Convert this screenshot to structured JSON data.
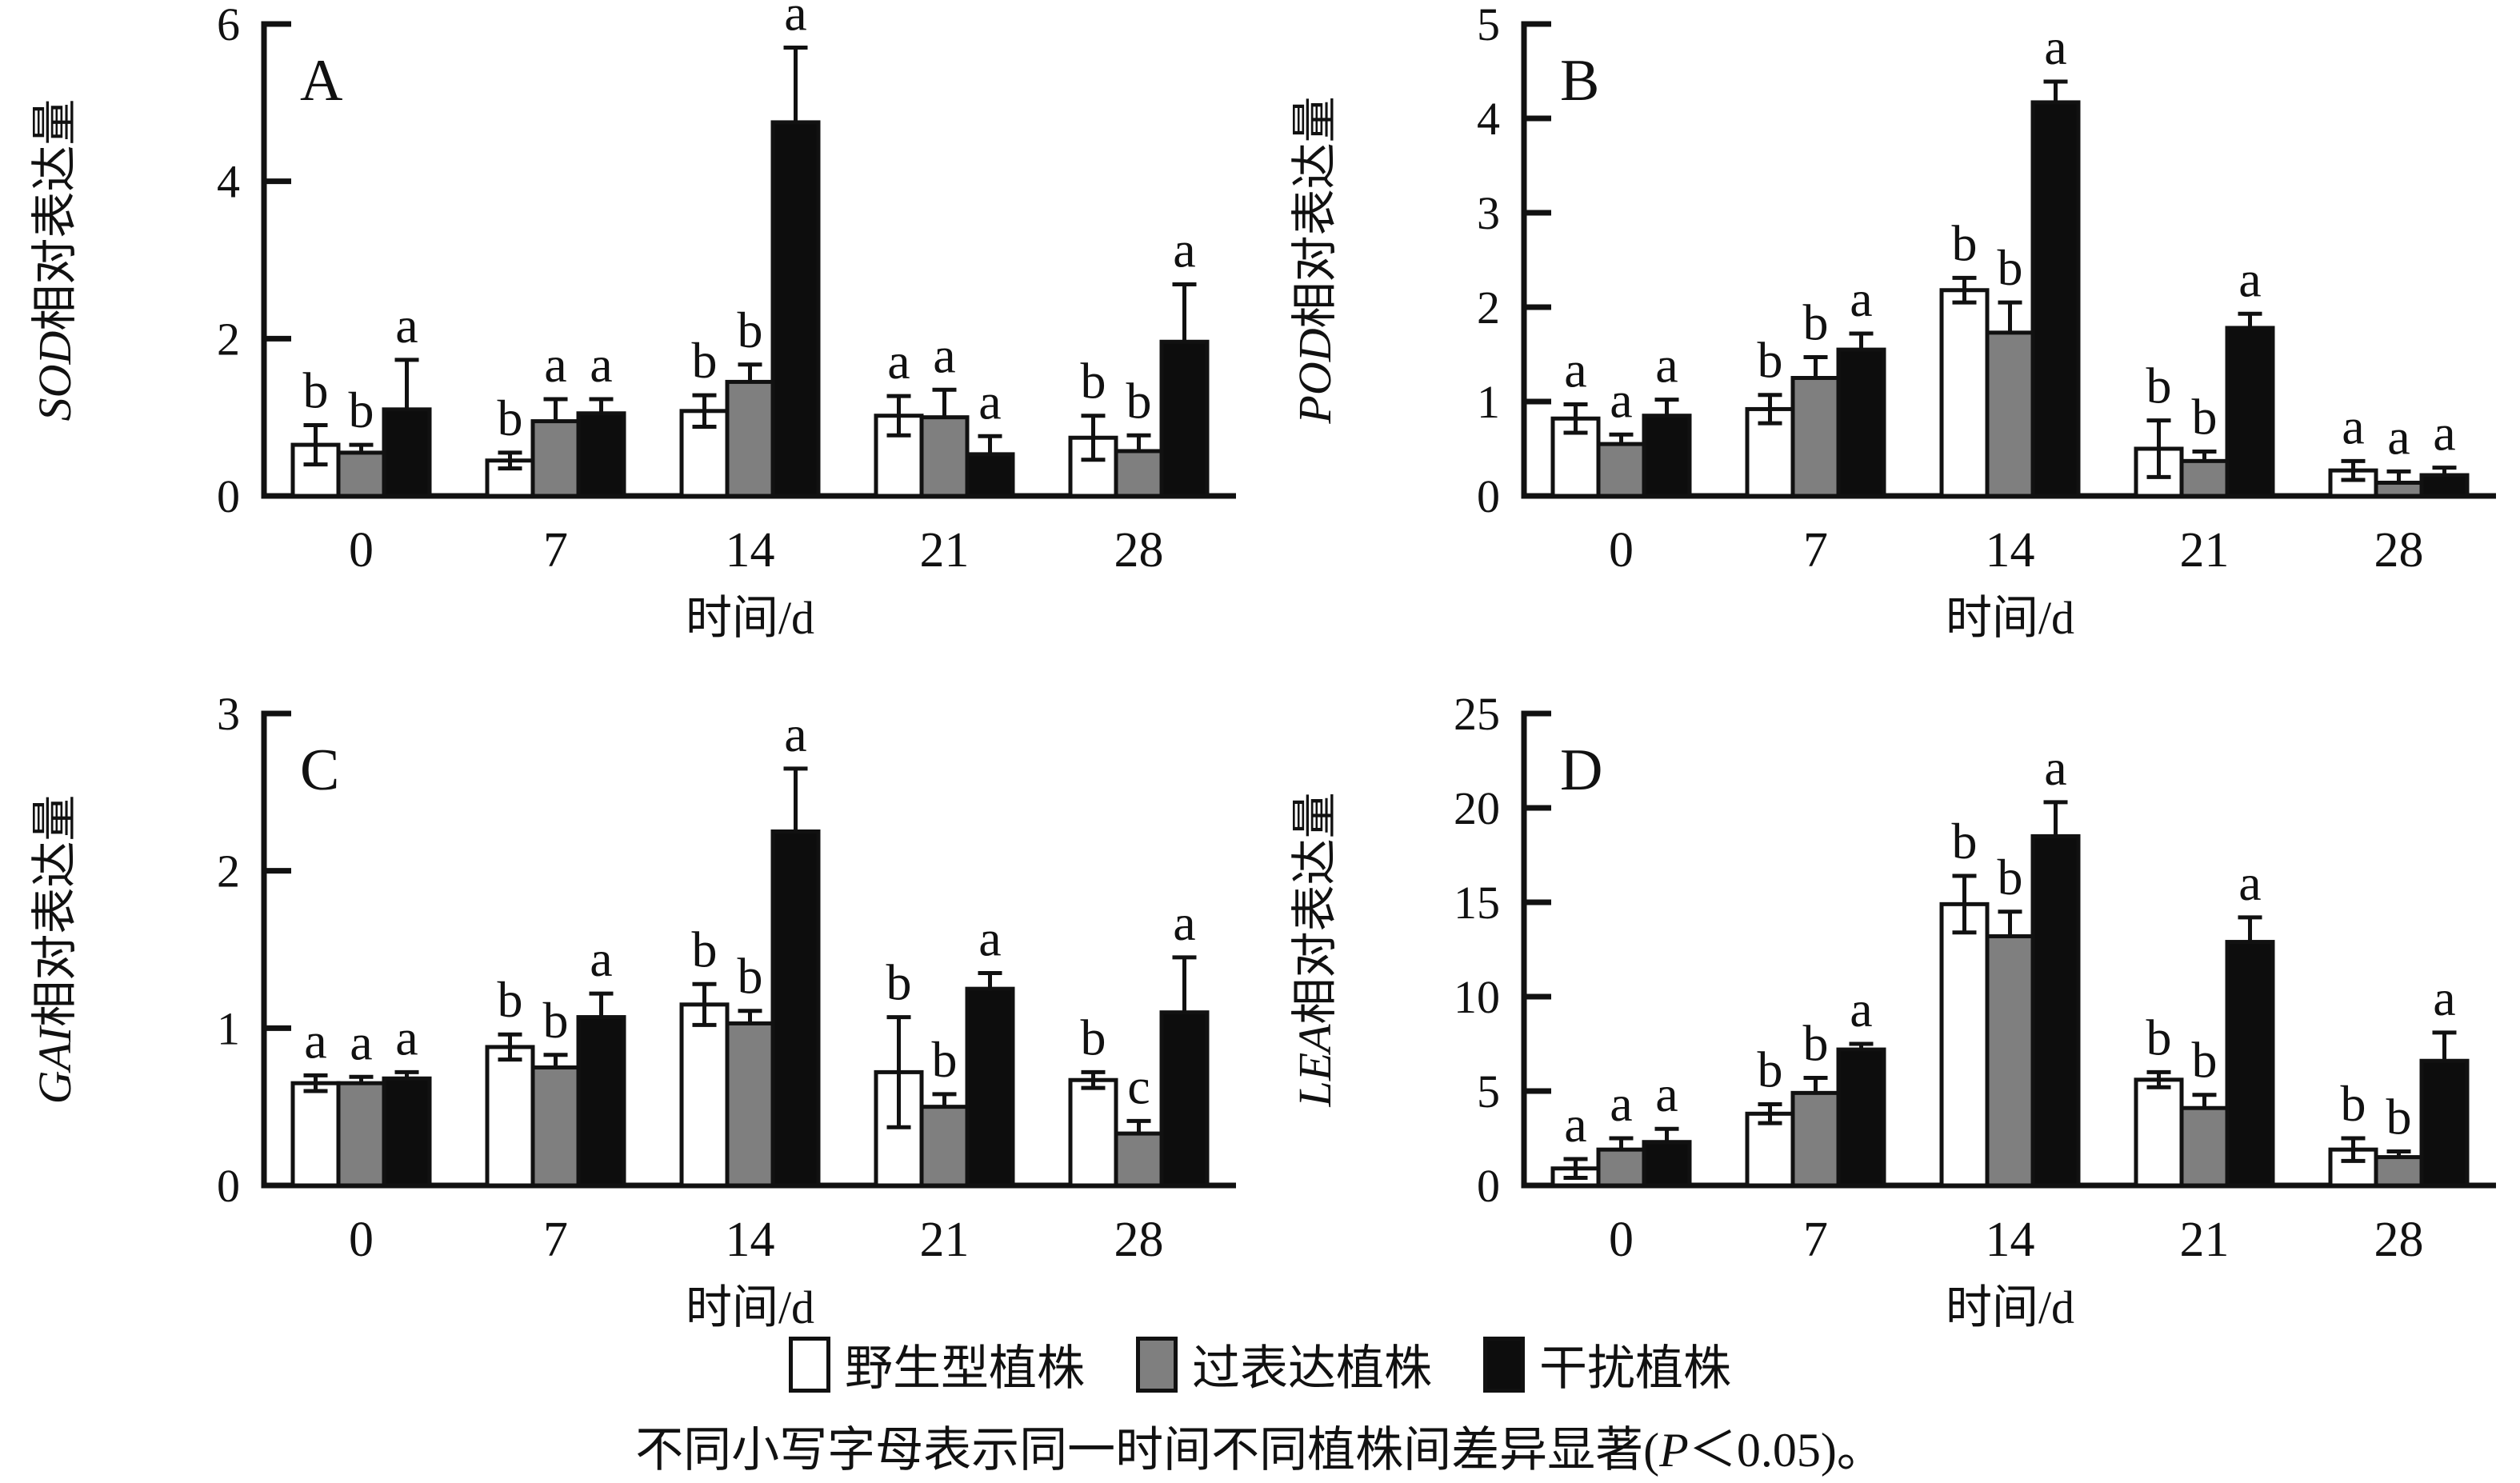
{
  "figure": {
    "xlabel": "时间/d",
    "categories": [
      "0",
      "7",
      "14",
      "21",
      "28"
    ],
    "legend_position": "bottom",
    "caption": {
      "prefix": "不同小写字母表示同一时间不同植株间差异显著(",
      "italic": "P",
      "suffix": "＜0.05)。"
    }
  },
  "legend": {
    "items": [
      {
        "label": "野生型植株",
        "color": "#ffffff"
      },
      {
        "label": "过表达植株",
        "color": "#7f7f7f"
      },
      {
        "label": "干扰植株",
        "color": "#0d0d0d"
      }
    ]
  },
  "chart_data": [
    {
      "type": "bar",
      "panel_label": "A",
      "ylabel_gene": "SOD",
      "ylabel_suffix": "相对表达量",
      "xlabel": "时间/d",
      "categories": [
        "0",
        "7",
        "14",
        "21",
        "28"
      ],
      "ylim": [
        0,
        6
      ],
      "yticks": [
        0,
        2,
        4,
        6
      ],
      "grid": false,
      "series": [
        {
          "name": "野生型植株",
          "color": "#ffffff",
          "values": [
            0.65,
            0.45,
            1.08,
            1.02,
            0.74
          ],
          "errors": [
            0.25,
            0.1,
            0.2,
            0.25,
            0.28
          ],
          "letters": [
            "b",
            "b",
            "b",
            "a",
            "b"
          ]
        },
        {
          "name": "过表达植株",
          "color": "#7f7f7f",
          "values": [
            0.55,
            0.95,
            1.45,
            1.0,
            0.57
          ],
          "errors": [
            0.1,
            0.28,
            0.22,
            0.35,
            0.2
          ],
          "letters": [
            "b",
            "a",
            "b",
            "a",
            "b"
          ]
        },
        {
          "name": "干扰植株",
          "color": "#0d0d0d",
          "values": [
            1.1,
            1.05,
            4.75,
            0.53,
            1.96
          ],
          "errors": [
            0.63,
            0.18,
            0.95,
            0.23,
            0.73
          ],
          "letters": [
            "a",
            "a",
            "a",
            "a",
            "a"
          ]
        }
      ]
    },
    {
      "type": "bar",
      "panel_label": "B",
      "ylabel_gene": "POD",
      "ylabel_suffix": "相对表达量",
      "xlabel": "时间/d",
      "categories": [
        "0",
        "7",
        "14",
        "21",
        "28"
      ],
      "ylim": [
        0,
        5
      ],
      "yticks": [
        0,
        1,
        2,
        3,
        4,
        5
      ],
      "grid": false,
      "series": [
        {
          "name": "野生型植株",
          "color": "#ffffff",
          "values": [
            0.82,
            0.92,
            2.18,
            0.5,
            0.27
          ],
          "errors": [
            0.15,
            0.15,
            0.13,
            0.3,
            0.1
          ],
          "letters": [
            "a",
            "b",
            "b",
            "b",
            "a"
          ]
        },
        {
          "name": "过表达植株",
          "color": "#7f7f7f",
          "values": [
            0.55,
            1.25,
            1.73,
            0.37,
            0.14
          ],
          "errors": [
            0.1,
            0.22,
            0.32,
            0.1,
            0.12
          ],
          "letters": [
            "a",
            "b",
            "b",
            "b",
            "a"
          ]
        },
        {
          "name": "干扰植株",
          "color": "#0d0d0d",
          "values": [
            0.85,
            1.55,
            4.17,
            1.78,
            0.22
          ],
          "errors": [
            0.17,
            0.17,
            0.22,
            0.15,
            0.08
          ],
          "letters": [
            "a",
            "a",
            "a",
            "a",
            "a"
          ]
        }
      ]
    },
    {
      "type": "bar",
      "panel_label": "C",
      "ylabel_gene": "GAI",
      "ylabel_suffix": "相对表达量",
      "xlabel": "时间/d",
      "categories": [
        "0",
        "7",
        "14",
        "21",
        "28"
      ],
      "ylim": [
        0,
        3
      ],
      "yticks": [
        0,
        1,
        2,
        3
      ],
      "grid": false,
      "series": [
        {
          "name": "野生型植株",
          "color": "#ffffff",
          "values": [
            0.65,
            0.88,
            1.15,
            0.72,
            0.67
          ],
          "errors": [
            0.05,
            0.08,
            0.13,
            0.35,
            0.05
          ],
          "letters": [
            "a",
            "b",
            "b",
            "b",
            "b"
          ]
        },
        {
          "name": "过表达植株",
          "color": "#7f7f7f",
          "values": [
            0.65,
            0.75,
            1.03,
            0.5,
            0.33
          ],
          "errors": [
            0.04,
            0.08,
            0.08,
            0.08,
            0.08
          ],
          "letters": [
            "a",
            "b",
            "b",
            "b",
            "c"
          ]
        },
        {
          "name": "干扰植株",
          "color": "#0d0d0d",
          "values": [
            0.68,
            1.07,
            2.25,
            1.25,
            1.1
          ],
          "errors": [
            0.04,
            0.15,
            0.4,
            0.1,
            0.35
          ],
          "letters": [
            "a",
            "a",
            "a",
            "a",
            "a"
          ]
        }
      ]
    },
    {
      "type": "bar",
      "panel_label": "D",
      "ylabel_gene": "LEA",
      "ylabel_suffix": "相对表达量",
      "xlabel": "时间/d",
      "categories": [
        "0",
        "7",
        "14",
        "21",
        "28"
      ],
      "ylim": [
        0,
        25
      ],
      "yticks": [
        0,
        5,
        10,
        15,
        20,
        25
      ],
      "grid": false,
      "series": [
        {
          "name": "野生型植株",
          "color": "#ffffff",
          "values": [
            0.9,
            3.8,
            14.9,
            5.6,
            1.9
          ],
          "errors": [
            0.5,
            0.5,
            1.5,
            0.4,
            0.6
          ],
          "letters": [
            "a",
            "b",
            "b",
            "b",
            "b"
          ]
        },
        {
          "name": "过表达植株",
          "color": "#7f7f7f",
          "values": [
            1.9,
            4.9,
            13.2,
            4.1,
            1.5
          ],
          "errors": [
            0.6,
            0.8,
            1.3,
            0.7,
            0.3
          ],
          "letters": [
            "a",
            "b",
            "b",
            "b",
            "b"
          ]
        },
        {
          "name": "干扰植株",
          "color": "#0d0d0d",
          "values": [
            2.3,
            7.2,
            18.5,
            12.9,
            6.6
          ],
          "errors": [
            0.7,
            0.3,
            1.8,
            1.3,
            1.5
          ],
          "letters": [
            "a",
            "a",
            "a",
            "a",
            "a"
          ]
        }
      ]
    }
  ]
}
